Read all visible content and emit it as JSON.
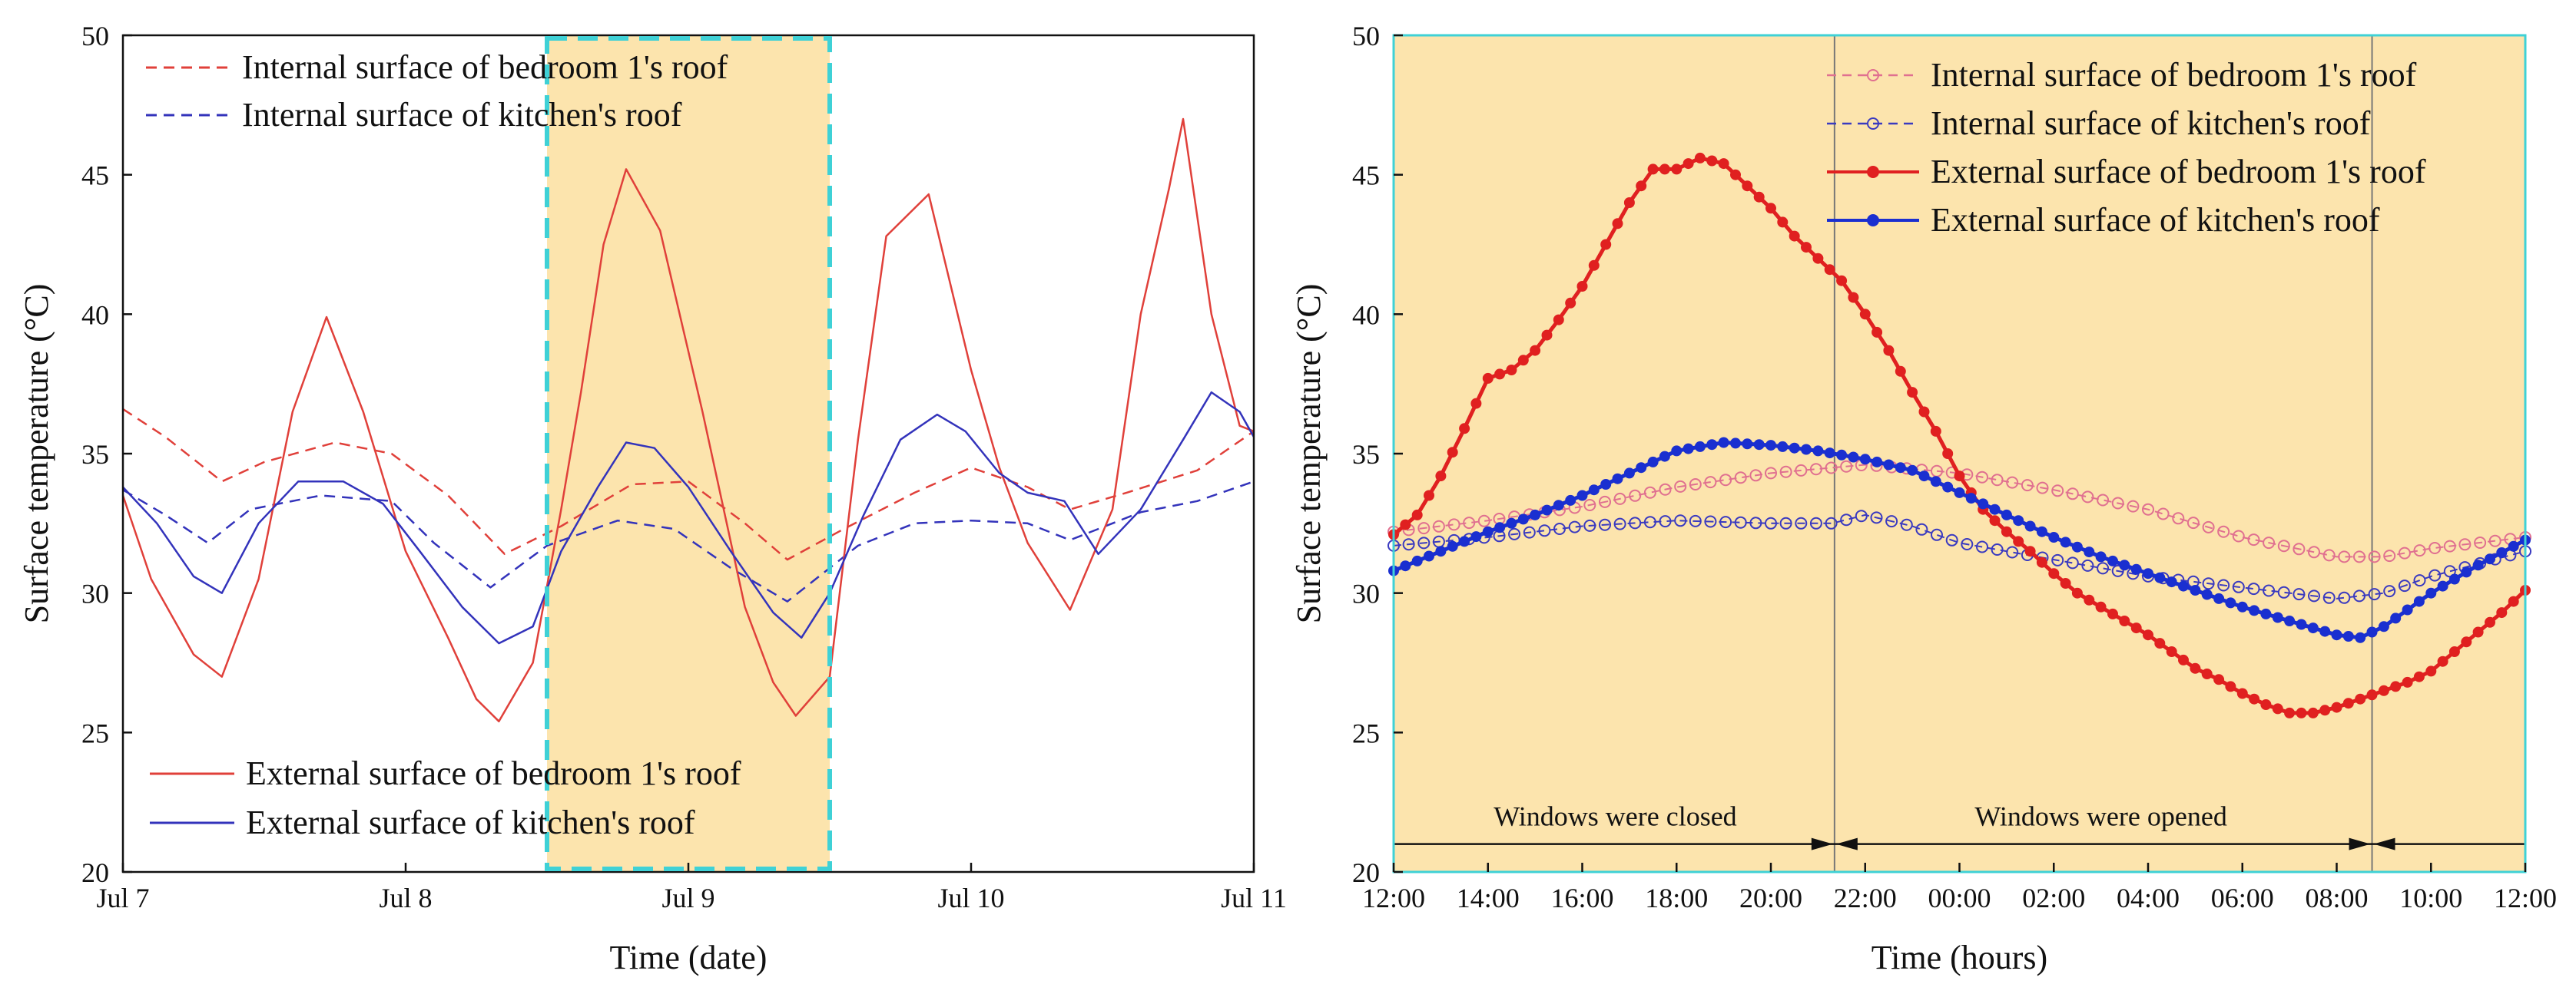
{
  "chart_data": [
    {
      "type": "line",
      "id": "left",
      "xlabel": "Time (date)",
      "ylabel": "Surface temperature (°C)",
      "xlim": [
        0,
        4
      ],
      "ylim": [
        20,
        50
      ],
      "xticks": [
        {
          "value": 0,
          "label": "Jul 7"
        },
        {
          "value": 1,
          "label": "Jul 8"
        },
        {
          "value": 2,
          "label": "Jul 9"
        },
        {
          "value": 3,
          "label": "Jul 10"
        },
        {
          "value": 4,
          "label": "Jul 11"
        }
      ],
      "yticks": [
        20,
        25,
        30,
        35,
        40,
        45,
        50
      ],
      "highlight": {
        "x0": 1.5,
        "x1": 2.5,
        "color": "#fce4ad",
        "border": "#3fd1d6"
      },
      "legend_top": [
        "Internal surface of bedroom 1's roof",
        "Internal surface of kitchen's roof"
      ],
      "legend_bottom": [
        "External surface of bedroom 1's roof",
        "External surface of kitchen's roof"
      ],
      "series": [
        {
          "name": "Internal surface of bedroom 1's roof",
          "color": "#e0403a",
          "dash": true,
          "x": [
            0,
            0.15,
            0.35,
            0.5,
            0.75,
            0.95,
            1.15,
            1.35,
            1.55,
            1.8,
            2.0,
            2.2,
            2.35,
            2.55,
            2.8,
            3.0,
            3.2,
            3.35,
            3.55,
            3.8,
            4.0
          ],
          "y": [
            36.6,
            35.6,
            34.0,
            34.7,
            35.4,
            35.0,
            33.5,
            31.4,
            32.4,
            33.9,
            34.0,
            32.5,
            31.2,
            32.3,
            33.6,
            34.5,
            33.8,
            33.0,
            33.6,
            34.4,
            35.8
          ]
        },
        {
          "name": "Internal surface of kitchen's roof",
          "color": "#3333bb",
          "dash": true,
          "x": [
            0,
            0.15,
            0.3,
            0.45,
            0.7,
            0.95,
            1.1,
            1.3,
            1.5,
            1.75,
            1.95,
            2.15,
            2.35,
            2.6,
            2.8,
            3.0,
            3.2,
            3.35,
            3.6,
            3.8,
            4.0
          ],
          "y": [
            33.7,
            32.8,
            31.8,
            33.0,
            33.5,
            33.3,
            31.8,
            30.2,
            31.7,
            32.6,
            32.3,
            30.9,
            29.7,
            31.7,
            32.5,
            32.6,
            32.5,
            31.9,
            32.9,
            33.3,
            34.0
          ]
        },
        {
          "name": "External surface of bedroom 1's roof",
          "color": "#e0403a",
          "dash": false,
          "x": [
            0,
            0.1,
            0.25,
            0.35,
            0.48,
            0.6,
            0.72,
            0.85,
            1.0,
            1.15,
            1.25,
            1.33,
            1.45,
            1.55,
            1.62,
            1.7,
            1.78,
            1.9,
            2.05,
            2.2,
            2.3,
            2.38,
            2.5,
            2.6,
            2.7,
            2.85,
            3.0,
            3.1,
            3.2,
            3.35,
            3.5,
            3.6,
            3.7,
            3.75,
            3.85,
            3.95,
            4.0
          ],
          "y": [
            33.5,
            30.5,
            27.8,
            27.0,
            30.5,
            36.5,
            39.9,
            36.5,
            31.5,
            28.4,
            26.2,
            25.4,
            27.5,
            33.0,
            37.2,
            42.5,
            45.2,
            43.0,
            36.5,
            29.5,
            26.8,
            25.6,
            27.0,
            35.5,
            42.8,
            44.3,
            38.0,
            34.5,
            31.8,
            29.4,
            33.0,
            40.0,
            44.5,
            47.0,
            40.0,
            36.0,
            35.8
          ]
        },
        {
          "name": "External surface of kitchen's roof",
          "color": "#3333bb",
          "dash": false,
          "x": [
            0,
            0.12,
            0.25,
            0.35,
            0.48,
            0.62,
            0.78,
            0.92,
            1.05,
            1.2,
            1.33,
            1.45,
            1.55,
            1.68,
            1.78,
            1.88,
            2.0,
            2.15,
            2.3,
            2.4,
            2.5,
            2.62,
            2.75,
            2.88,
            2.98,
            3.1,
            3.2,
            3.33,
            3.45,
            3.6,
            3.75,
            3.85,
            3.95,
            4.0
          ],
          "y": [
            33.8,
            32.5,
            30.6,
            30.0,
            32.5,
            34.0,
            34.0,
            33.2,
            31.5,
            29.5,
            28.2,
            28.8,
            31.5,
            33.8,
            35.4,
            35.2,
            33.8,
            31.5,
            29.3,
            28.4,
            30.0,
            32.8,
            35.5,
            36.4,
            35.8,
            34.3,
            33.6,
            33.3,
            31.4,
            33.0,
            35.5,
            37.2,
            36.5,
            35.6
          ]
        }
      ]
    },
    {
      "type": "line",
      "id": "right",
      "xlabel": "Time (hours)",
      "ylabel": "Surface temperature (°C)",
      "xlim": [
        12,
        36
      ],
      "ylim": [
        20,
        50
      ],
      "xticks": [
        {
          "value": 12,
          "label": "12:00"
        },
        {
          "value": 14,
          "label": "14:00"
        },
        {
          "value": 16,
          "label": "16:00"
        },
        {
          "value": 18,
          "label": "18:00"
        },
        {
          "value": 20,
          "label": "20:00"
        },
        {
          "value": 22,
          "label": "22:00"
        },
        {
          "value": 24,
          "label": "00:00"
        },
        {
          "value": 26,
          "label": "02:00"
        },
        {
          "value": 28,
          "label": "04:00"
        },
        {
          "value": 30,
          "label": "06:00"
        },
        {
          "value": 32,
          "label": "08:00"
        },
        {
          "value": 34,
          "label": "10:00"
        },
        {
          "value": 36,
          "label": "12:00"
        }
      ],
      "yticks": [
        20,
        25,
        30,
        35,
        40,
        45,
        50
      ],
      "vlines": [
        21.35,
        32.75
      ],
      "arrow_y": 21,
      "annotations": [
        {
          "text": "Windows were closed",
          "x": 16.7,
          "y": 22.0
        },
        {
          "text": "Windows were opened",
          "x": 27.0,
          "y": 22.0
        }
      ],
      "legend": [
        "Internal surface of bedroom 1's roof",
        "Internal surface of kitchen's roof",
        "External surface of bedroom 1's roof",
        "External surface of kitchen's roof"
      ],
      "series": [
        {
          "name": "Internal surface of bedroom 1's roof",
          "color": "#e07090",
          "marker": "open",
          "dash": true,
          "x": [
            12,
            14,
            16,
            18,
            20,
            22,
            24,
            26,
            28,
            30,
            32,
            33,
            34,
            36
          ],
          "y": [
            32.2,
            32.6,
            33.1,
            33.8,
            34.3,
            34.6,
            34.3,
            33.7,
            33.0,
            32.0,
            31.3,
            31.3,
            31.6,
            32.0
          ]
        },
        {
          "name": "Internal surface of kitchen's roof",
          "color": "#3a3ac0",
          "marker": "open",
          "dash": true,
          "x": [
            12,
            14,
            16,
            18,
            20,
            21.3,
            22,
            23,
            24,
            26,
            28,
            30,
            32,
            33,
            34,
            36
          ],
          "y": [
            31.7,
            32.0,
            32.4,
            32.6,
            32.5,
            32.5,
            32.8,
            32.4,
            31.8,
            31.2,
            30.6,
            30.2,
            29.8,
            30.0,
            30.6,
            31.5
          ]
        },
        {
          "name": "External surface of bedroom 1's roof",
          "color": "#e02020",
          "marker": "filled",
          "dash": false,
          "x": [
            12,
            12.5,
            13,
            13.5,
            14,
            14.5,
            15,
            15.5,
            16,
            16.5,
            17,
            17.5,
            18,
            18.5,
            19,
            19.5,
            20,
            20.5,
            21,
            21.5,
            22,
            22.5,
            23,
            23.5,
            24,
            24.5,
            25,
            25.5,
            26,
            26.5,
            27,
            27.5,
            28,
            28.5,
            29,
            29.5,
            30,
            30.5,
            31,
            31.5,
            32,
            32.5,
            33,
            33.5,
            34,
            34.5,
            35,
            35.5,
            36
          ],
          "y": [
            32.1,
            32.8,
            34.2,
            35.9,
            37.7,
            38.0,
            38.7,
            39.8,
            41.0,
            42.5,
            44.0,
            45.2,
            45.2,
            45.6,
            45.4,
            44.6,
            43.8,
            42.8,
            42.0,
            41.2,
            40.0,
            38.7,
            37.2,
            35.8,
            34.2,
            33.0,
            32.2,
            31.5,
            30.7,
            30.0,
            29.5,
            29.0,
            28.5,
            27.9,
            27.3,
            26.9,
            26.4,
            26.0,
            25.7,
            25.7,
            25.9,
            26.2,
            26.5,
            26.8,
            27.2,
            27.9,
            28.6,
            29.3,
            30.1
          ]
        },
        {
          "name": "External surface of kitchen's roof",
          "color": "#1a2fd0",
          "marker": "filled",
          "dash": false,
          "x": [
            12,
            13,
            14,
            15,
            16,
            17,
            18,
            19,
            20,
            21,
            22,
            23,
            24,
            25,
            26,
            27,
            28,
            29,
            30,
            31,
            32,
            32.5,
            33,
            34,
            35,
            36
          ],
          "y": [
            30.8,
            31.5,
            32.2,
            32.8,
            33.5,
            34.3,
            35.1,
            35.4,
            35.3,
            35.1,
            34.8,
            34.4,
            33.6,
            32.8,
            32.0,
            31.3,
            30.7,
            30.1,
            29.5,
            29.0,
            28.5,
            28.4,
            28.8,
            30.0,
            31.0,
            31.9
          ]
        }
      ]
    }
  ]
}
